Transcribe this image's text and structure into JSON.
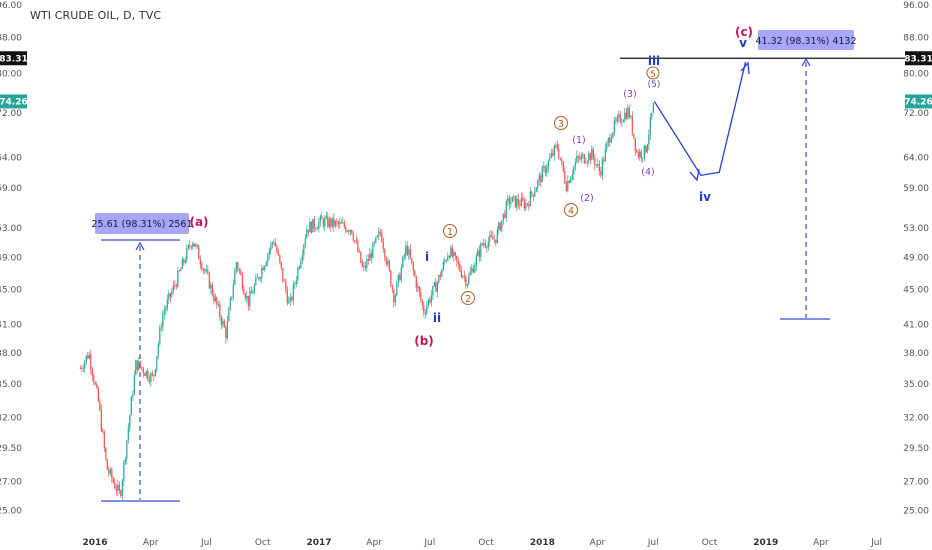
{
  "symbol": {
    "title": "WTI CRUDE OIL, D, TVC"
  },
  "price_badges": {
    "target": {
      "text": "83.31",
      "bg": "#111111",
      "fg": "#ffffff"
    },
    "last": {
      "text": "74.26",
      "bg": "#26a69a",
      "fg": "#ffffff"
    }
  },
  "colors": {
    "up": "#26a69a",
    "down": "#ef5350",
    "blue_wave": "#1e3cc8",
    "red_wave": "#c2185b",
    "orange_wave": "#b35c1e",
    "purple_wave": "#7b3fbf",
    "measure_box": "#a9a6f5"
  },
  "annotations": {
    "measure_1": "25.61 (98.31%) 2561",
    "measure_2": "41.32 (98.31%) 4132",
    "wave_labels": {
      "a": "(a)",
      "b": "(b)",
      "c": "(c)",
      "i": "i",
      "ii": "ii",
      "iii": "iii",
      "iv": "iv",
      "v": "v",
      "w1": "1",
      "w2": "2",
      "w3": "3",
      "w4": "4",
      "w5": "5",
      "s1": "(1)",
      "s2": "(2)",
      "s3": "(3)",
      "s4": "(4)",
      "s5": "(5)"
    }
  },
  "chart_data": {
    "type": "line",
    "title": "WTI CRUDE OIL, D, TVC",
    "y_scale": "log",
    "ylim": [
      24.5,
      96
    ],
    "y_ticks": [
      "96.00",
      "88.00",
      "80.00",
      "72.00",
      "64.00",
      "59.00",
      "53.00",
      "49.00",
      "45.00",
      "41.00",
      "38.00",
      "35.00",
      "32.00",
      "29.50",
      "27.00",
      "25.00"
    ],
    "x_ticks": [
      "2016",
      "Apr",
      "Jul",
      "Oct",
      "2017",
      "Apr",
      "Jul",
      "Oct",
      "2018",
      "Apr",
      "Jul",
      "Oct",
      "2019",
      "Apr",
      "Jul"
    ],
    "x": [
      "2015-12-08",
      "2015-12-22",
      "2016-01-07",
      "2016-01-20",
      "2016-02-11",
      "2016-03-08",
      "2016-04-05",
      "2016-04-20",
      "2016-05-10",
      "2016-06-08",
      "2016-07-05",
      "2016-08-02",
      "2016-08-19",
      "2016-09-07",
      "2016-10-19",
      "2016-11-14",
      "2016-12-12",
      "2017-01-06",
      "2017-02-23",
      "2017-03-14",
      "2017-04-12",
      "2017-05-04",
      "2017-05-24",
      "2017-06-21",
      "2017-07-14",
      "2017-08-01",
      "2017-08-31",
      "2017-09-26",
      "2017-10-16",
      "2017-11-07",
      "2017-12-06",
      "2018-01-25",
      "2018-02-09",
      "2018-02-26",
      "2018-03-23",
      "2018-04-05",
      "2018-04-23",
      "2018-05-08",
      "2018-05-22",
      "2018-06-05",
      "2018-06-18",
      "2018-07-03"
    ],
    "series": [
      {
        "values": [
          36.5,
          38.0,
          33.2,
          28.0,
          26.0,
          37.0,
          35.5,
          42.0,
          45.5,
          51.5,
          46.0,
          40.0,
          48.5,
          43.5,
          51.5,
          43.0,
          53.0,
          54.0,
          53.0,
          47.3,
          52.5,
          44.0,
          50.5,
          42.5,
          46.0,
          50.0,
          46.0,
          51.0,
          51.5,
          57.0,
          56.5,
          66.0,
          59.5,
          63.5,
          64.5,
          61.5,
          68.5,
          71.0,
          72.5,
          64.5,
          65.0,
          74.26
        ]
      }
    ],
    "projection": {
      "x": [
        "2018-07-03",
        "2018-09-17",
        "2018-10-17",
        "2018-11-29"
      ],
      "values": [
        74.26,
        61.0,
        61.5,
        82.5
      ]
    },
    "levels": {
      "target": 83.31,
      "last": 74.26
    }
  }
}
